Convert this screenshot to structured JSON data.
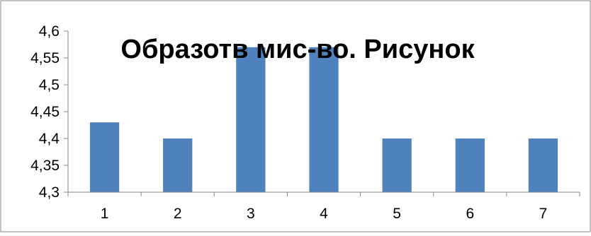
{
  "chart_data": {
    "type": "bar",
    "title": "Образотв мис-во. Рисунок",
    "categories": [
      "1",
      "2",
      "3",
      "4",
      "5",
      "6",
      "7"
    ],
    "values": [
      4.43,
      4.4,
      4.57,
      4.57,
      4.4,
      4.4,
      4.4
    ],
    "ylim": [
      4.3,
      4.6
    ],
    "yticks": [
      "4,3",
      "4,35",
      "4,4",
      "4,45",
      "4,5",
      "4,55",
      "4,6"
    ],
    "xlabel": "",
    "ylabel": "",
    "grid": false,
    "legend": "none",
    "bar_color": "#4f81bd"
  }
}
